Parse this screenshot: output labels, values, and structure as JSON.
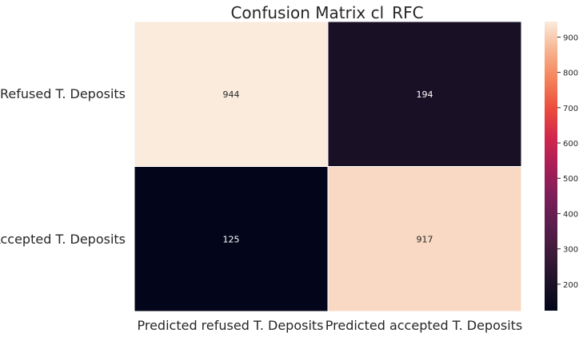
{
  "chart_data": {
    "type": "heatmap",
    "title": "Confusion Matrix cl_RFC",
    "rows": [
      "Refused T. Deposits",
      "Accepted T. Deposits"
    ],
    "columns": [
      "Predicted refused T. Deposits",
      "Predicted accepted T. Deposits"
    ],
    "values": [
      [
        944,
        194
      ],
      [
        125,
        917
      ]
    ],
    "colorbar": {
      "range": [
        125,
        944
      ],
      "ticks": [
        200,
        300,
        400,
        500,
        600,
        700,
        800,
        900
      ],
      "colormap": "rocket"
    },
    "grid": false,
    "legend": "colorbar-right"
  }
}
